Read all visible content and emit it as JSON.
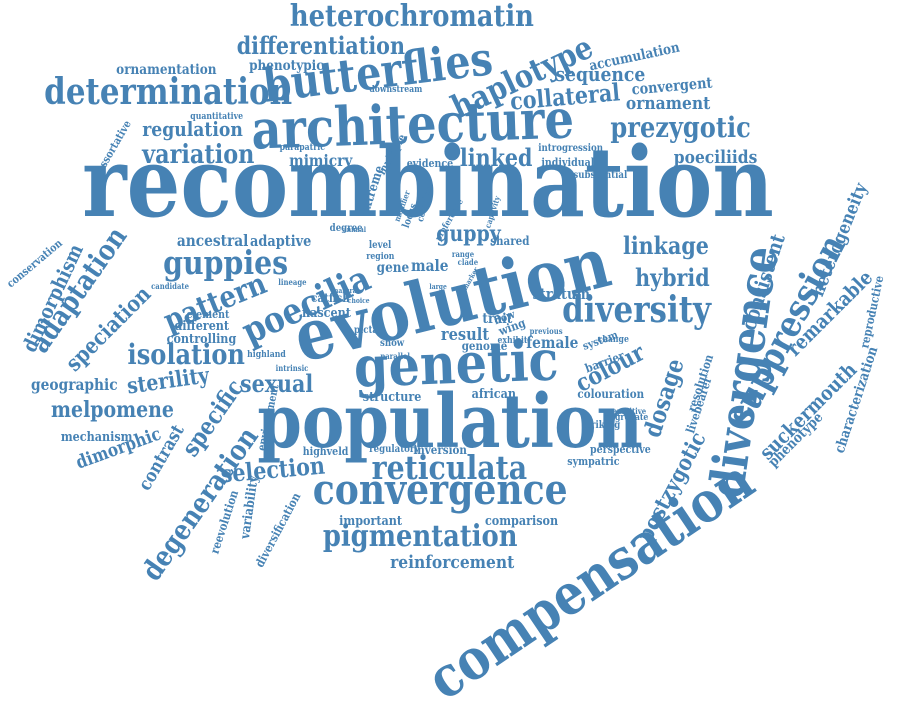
{
  "color": "#4682b4",
  "words": [
    "recombination",
    "evolution",
    "population",
    "genetic",
    "compensation",
    "architecture",
    "divergence",
    "butterflies",
    "convergence",
    "diversity",
    "poecilia",
    "determination",
    "suppression",
    "reticulata",
    "guppies",
    "heterochromatin",
    "haplotype",
    "pigmentation",
    "prezygotic",
    "adaptation",
    "isolation",
    "differentiation",
    "variation",
    "collateral",
    "pattern",
    "degeneration",
    "sexual",
    "linked",
    "hybrid",
    "linkage",
    "colour",
    "selection",
    "specific",
    "melpomene",
    "dosage",
    "speciation",
    "postzygotic",
    "guppy",
    "sterility",
    "sequence",
    "regulation",
    "consistent",
    "dimorphism",
    "heterogeneity",
    "remarkable",
    "suckermouth",
    "reinforcement",
    "ornament",
    "poeciliids",
    "mimicry",
    "ancestral",
    "male",
    "female",
    "convergent",
    "accumulation",
    "ornamentation",
    "phenotypic",
    "characterization",
    "phenotype",
    "reproductive",
    "dimorphic",
    "geographic",
    "contrast",
    "mechanism",
    "result",
    "stratum",
    "adaptive",
    "structure",
    "african",
    "important",
    "comparison",
    "colouration",
    "controlling",
    "different",
    "element",
    "catfish",
    "nascent",
    "shared",
    "evidence",
    "individual",
    "introgression",
    "inversion",
    "regulatory",
    "highveld",
    "perspective",
    "sympatric",
    "variability",
    "reevolution",
    "diversification",
    "conservation",
    "candidate",
    "assortative",
    "quantitative",
    "downstream",
    "striking",
    "aggregate",
    "substantial",
    "livebearer",
    "resolution",
    "repetitive",
    "barrier",
    "system",
    "environment",
    "extreme",
    "multiple",
    "parapatric",
    "gene",
    "trait",
    "genome",
    "wing",
    "flow",
    "locus",
    "degree",
    "level",
    "region",
    "picta",
    "show",
    "lineage",
    "highland",
    "intrinsic",
    "exhibit",
    "previous",
    "change",
    "parallel",
    "modifier",
    "complex",
    "preference",
    "captivity",
    "clade",
    "range",
    "natural",
    "choice",
    "animal",
    "marker",
    "large"
  ]
}
